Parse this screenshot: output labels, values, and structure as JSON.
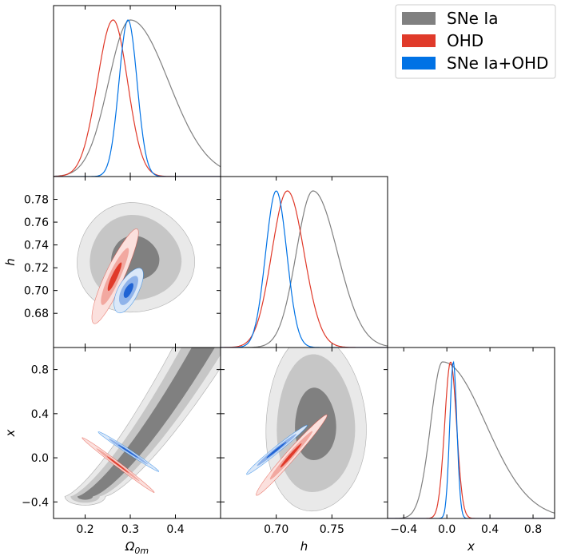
{
  "chart_data": {
    "type": "triangle-corner-plot",
    "parameters": [
      {
        "symbol": "Ω",
        "subscript": "0m",
        "lim": [
          0.13,
          0.5
        ],
        "ticks": [
          "0.2",
          "0.3",
          "0.4"
        ],
        "tick_values": [
          0.2,
          0.3,
          0.4
        ]
      },
      {
        "symbol": "h",
        "subscript": "",
        "lim": [
          0.65,
          0.8
        ],
        "ticks": [
          "0.70",
          "0.75"
        ],
        "tick_values": [
          0.7,
          0.75
        ],
        "y_ticks": [
          "0.68",
          "0.70",
          "0.72",
          "0.74",
          "0.76",
          "0.78"
        ],
        "y_tick_values": [
          0.68,
          0.7,
          0.72,
          0.74,
          0.76,
          0.78
        ]
      },
      {
        "symbol": "x",
        "subscript": "",
        "lim": [
          -0.55,
          1.0
        ],
        "ticks": [
          "−0.4",
          "0.0",
          "0.4",
          "0.8"
        ],
        "tick_values": [
          -0.4,
          0.0,
          0.4,
          0.8
        ],
        "y_ticks": [
          "−0.4",
          "0.0",
          "0.4",
          "0.8"
        ],
        "y_tick_values": [
          -0.4,
          0.0,
          0.4,
          0.8
        ]
      }
    ],
    "series": [
      {
        "name": "SNe Ia",
        "color": "#808080",
        "contour_colors": [
          "#e9e9e9",
          "#c6c6c6",
          "#808080"
        ],
        "marginals": {
          "omega": {
            "type": "skewnormal",
            "mu": 0.3,
            "sl": 0.048,
            "sr": 0.085
          },
          "h": {
            "type": "skewnormal",
            "mu": 0.733,
            "sl": 0.015,
            "sr": 0.022
          },
          "x": {
            "type": "skewnormal",
            "mu": -0.04,
            "sl": 0.11,
            "sr": 0.4
          }
        },
        "contours": [
          {
            "pair": "omega-h",
            "cx": 0.31,
            "cy": 0.728,
            "rx": 0.13,
            "ry": 0.048,
            "rot": 0,
            "levels": [
              1.0,
              0.78,
              0.41
            ]
          },
          {
            "pair": "omega-x",
            "kind": "banana",
            "levels": [
              1.0,
              0.72,
              0.38
            ]
          },
          {
            "pair": "h-x",
            "cx": 0.735,
            "cy": 0.3,
            "rx": 0.045,
            "ry": 0.8,
            "rot": 0,
            "levels": [
              1.0,
              0.78,
              0.41
            ]
          }
        ]
      },
      {
        "name": "OHD",
        "color": "#e03a2a",
        "contour_colors": [
          "#fbe0dd",
          "#f2a8a0",
          "#e03a2a"
        ],
        "marginals": {
          "omega": {
            "type": "skewnormal",
            "mu": 0.262,
            "sl": 0.035,
            "sr": 0.032
          },
          "h": {
            "type": "skewnormal",
            "mu": 0.71,
            "sl": 0.014,
            "sr": 0.015
          },
          "x": {
            "type": "skewnormal",
            "mu": 0.035,
            "sl": 0.055,
            "sr": 0.055
          }
        },
        "contours": [
          {
            "pair": "omega-h",
            "cx": 0.265,
            "cy": 0.712,
            "rx": 0.115,
            "ry": 0.0082,
            "rot": -1.14,
            "levels": [
              1.0,
              0.6,
              0.3
            ]
          },
          {
            "pair": "omega-x",
            "cx": 0.272,
            "cy": -0.06,
            "rx": 0.1,
            "ry": 0.022,
            "rot": 0.65,
            "levels": [
              1.0,
              0.6,
              0.3
            ]
          },
          {
            "pair": "h-x",
            "cx": 0.713,
            "cy": 0.02,
            "rx": 0.048,
            "ry": 0.045,
            "rot": -0.85,
            "levels": [
              1.0,
              0.6,
              0.3
            ]
          }
        ]
      },
      {
        "name": "SNe Ia+OHD",
        "color": "#0072e5",
        "contour_colors": [
          "#dbe8f8",
          "#8fb3ea",
          "#1f63d4"
        ],
        "marginals": {
          "omega": {
            "type": "skewnormal",
            "mu": 0.295,
            "sl": 0.02,
            "sr": 0.02
          },
          "h": {
            "type": "skewnormal",
            "mu": 0.7,
            "sl": 0.0095,
            "sr": 0.0095
          },
          "x": {
            "type": "skewnormal",
            "mu": 0.06,
            "sl": 0.033,
            "sr": 0.033
          }
        },
        "contours": [
          {
            "pair": "omega-h",
            "cx": 0.296,
            "cy": 0.7,
            "rx": 0.055,
            "ry": 0.0088,
            "rot": -1.08,
            "levels": [
              1.0,
              0.65,
              0.33
            ]
          },
          {
            "pair": "omega-x",
            "cx": 0.295,
            "cy": 0.06,
            "rx": 0.08,
            "ry": 0.02,
            "rot": 0.58,
            "levels": [
              1.0,
              0.65,
              0.33
            ]
          },
          {
            "pair": "h-x",
            "cx": 0.7,
            "cy": 0.07,
            "rx": 0.035,
            "ry": 0.028,
            "rot": -0.68,
            "levels": [
              1.0,
              0.65,
              0.33
            ]
          }
        ]
      }
    ]
  }
}
